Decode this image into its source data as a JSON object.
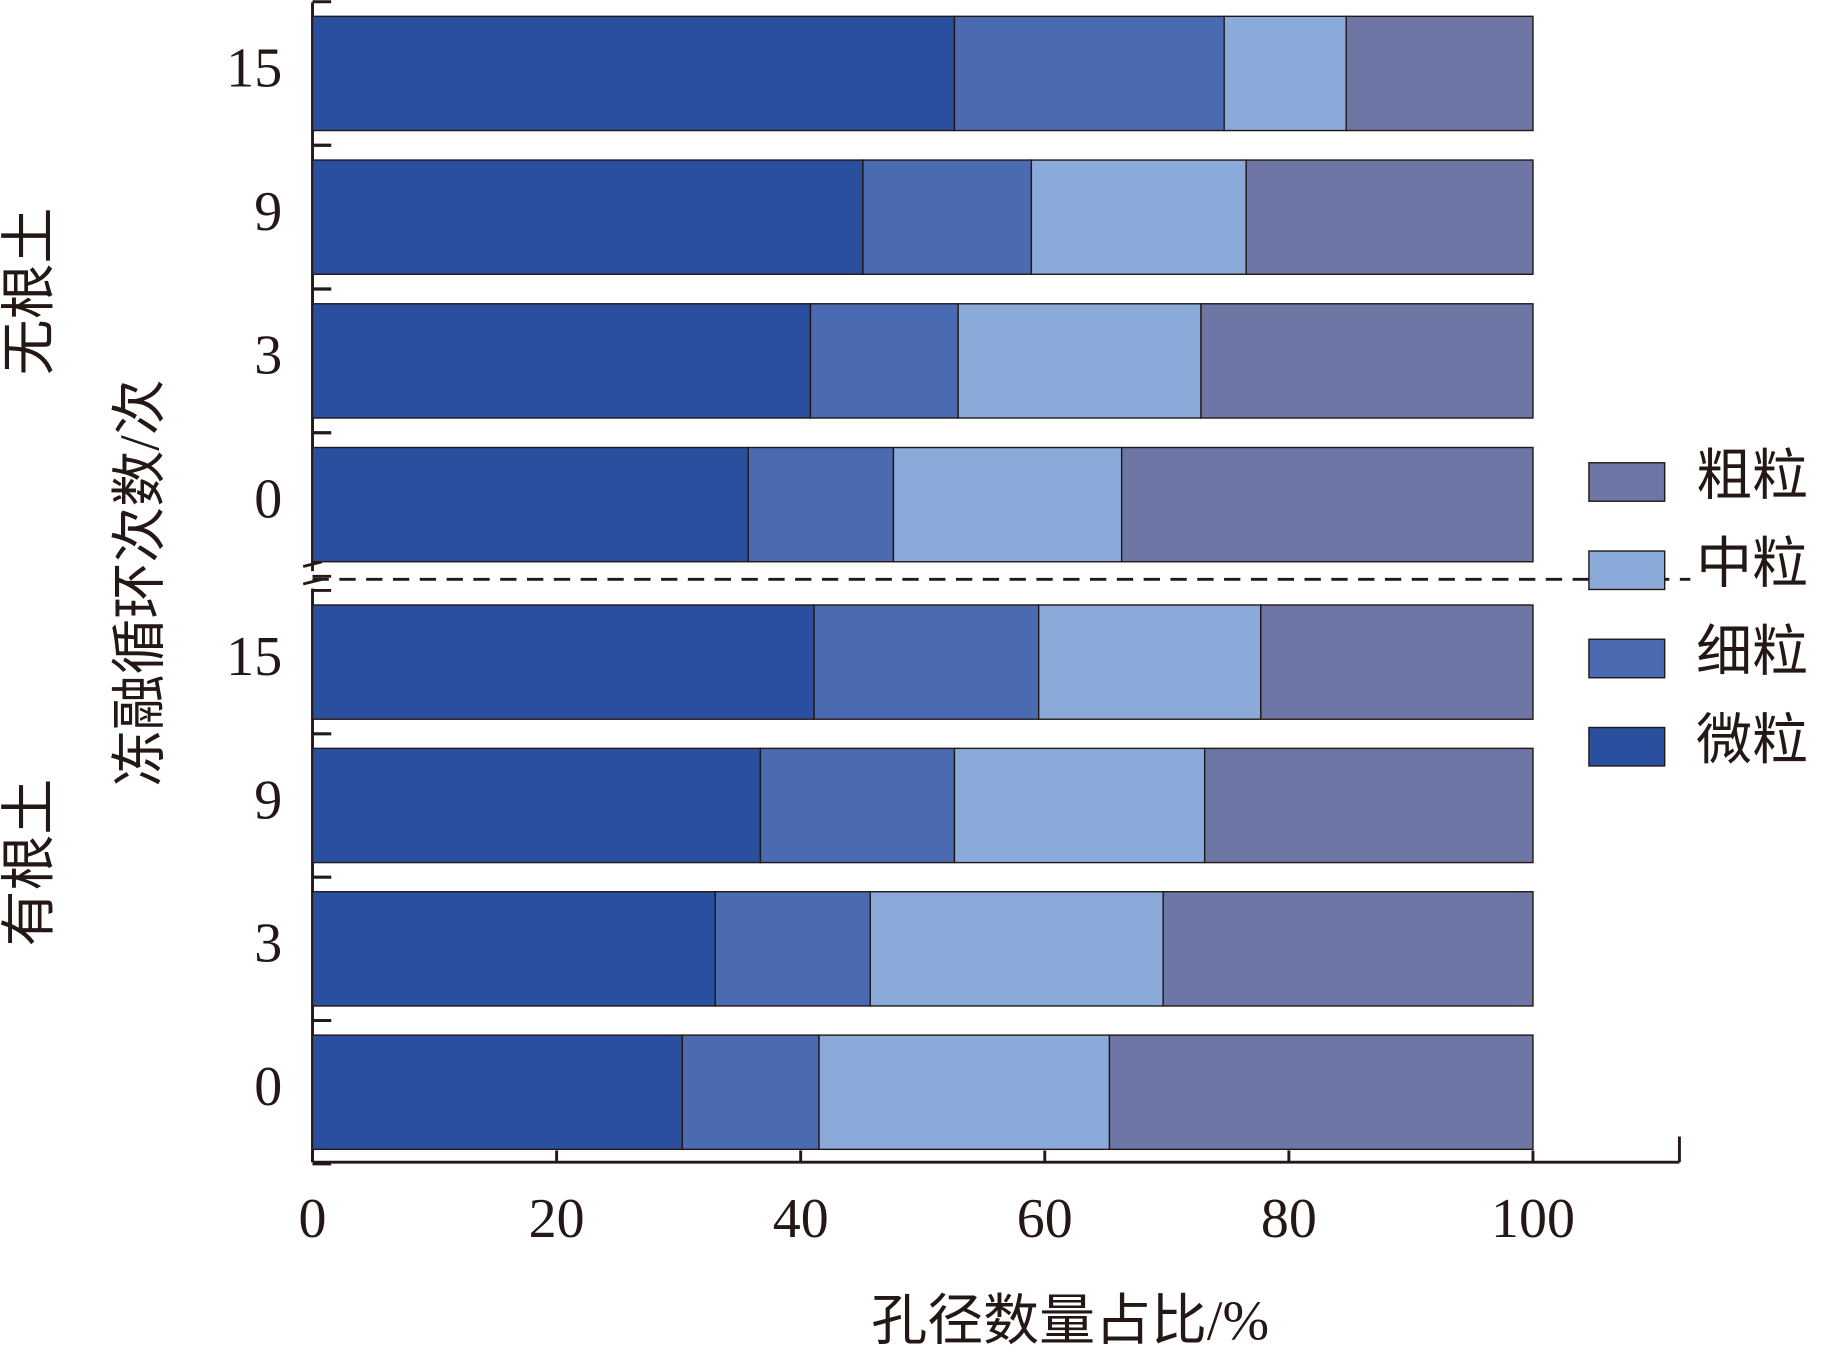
{
  "chart_data": {
    "type": "stacked-barh",
    "x_label": "孔径数量占比/%",
    "y_label": "冻融循环次数/次",
    "groups": [
      "无根土",
      "有根土"
    ],
    "categories": [
      "15",
      "9",
      "3",
      "0",
      "15",
      "9",
      "3",
      "0"
    ],
    "series": [
      {
        "name": "微粒",
        "color": "#2a4f9f",
        "values": [
          52.6,
          45.1,
          40.8,
          35.7,
          41.1,
          36.7,
          33.0,
          30.3
        ]
      },
      {
        "name": "细粒",
        "color": "#4a6ab2",
        "values": [
          22.1,
          13.8,
          12.1,
          11.9,
          18.4,
          15.9,
          12.7,
          11.2
        ]
      },
      {
        "name": "中粒",
        "color": "#8aaad9",
        "values": [
          10.0,
          17.6,
          19.9,
          18.7,
          18.2,
          20.5,
          24.0,
          23.8
        ]
      },
      {
        "name": "粗粒",
        "color": "#6e76a5",
        "values": [
          15.3,
          23.5,
          27.2,
          33.7,
          22.3,
          26.9,
          30.3,
          34.7
        ]
      }
    ],
    "xlim": [
      0,
      112
    ],
    "xticks": [
      0,
      20,
      40,
      60,
      80,
      100
    ],
    "legend": "right"
  }
}
